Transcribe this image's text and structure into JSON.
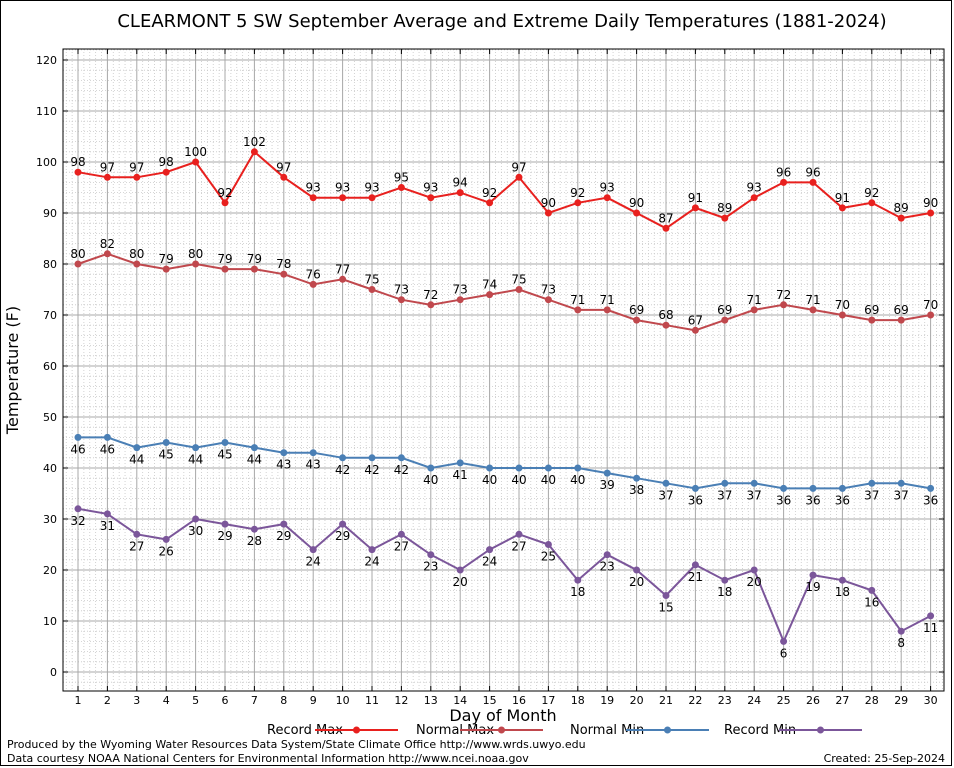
{
  "chart_data": {
    "type": "line",
    "title": "CLEARMONT 5 SW September Average and Extreme Daily Temperatures (1881-2024)",
    "xlabel": "Day of Month",
    "ylabel": "Temperature (F)",
    "xlim": [
      0.5,
      30.5
    ],
    "ylim": [
      -4,
      122
    ],
    "yticks": [
      0,
      10,
      20,
      30,
      40,
      50,
      60,
      70,
      80,
      90,
      100,
      110,
      120
    ],
    "x": [
      1,
      2,
      3,
      4,
      5,
      6,
      7,
      8,
      9,
      10,
      11,
      12,
      13,
      14,
      15,
      16,
      17,
      18,
      19,
      20,
      21,
      22,
      23,
      24,
      25,
      26,
      27,
      28,
      29,
      30
    ],
    "grid": true,
    "legend_position": "bottom",
    "series": [
      {
        "name": "Record Max",
        "color": "#e8201e",
        "label_pos": "above",
        "values": [
          98,
          97,
          97,
          98,
          100,
          92,
          102,
          97,
          93,
          93,
          93,
          95,
          93,
          94,
          92,
          97,
          90,
          92,
          93,
          90,
          87,
          91,
          89,
          93,
          96,
          96,
          91,
          92,
          89,
          90
        ]
      },
      {
        "name": "Normal Max",
        "color": "#c0484d",
        "label_pos": "above",
        "values": [
          80,
          82,
          80,
          79,
          80,
          79,
          79,
          78,
          76,
          77,
          75,
          73,
          72,
          73,
          74,
          75,
          73,
          71,
          71,
          69,
          68,
          67,
          69,
          71,
          72,
          71,
          70,
          69,
          69,
          70
        ]
      },
      {
        "name": "Normal Min",
        "color": "#4a7fb5",
        "label_pos": "below",
        "values": [
          46,
          46,
          44,
          45,
          44,
          45,
          44,
          43,
          43,
          42,
          42,
          42,
          40,
          41,
          40,
          40,
          40,
          40,
          39,
          38,
          37,
          36,
          37,
          37,
          36,
          36,
          36,
          37,
          37,
          36
        ]
      },
      {
        "name": "Record Min",
        "color": "#7b569a",
        "label_pos": "below",
        "values": [
          32,
          31,
          27,
          26,
          30,
          29,
          28,
          29,
          24,
          29,
          24,
          27,
          23,
          20,
          24,
          27,
          25,
          18,
          23,
          20,
          15,
          21,
          18,
          20,
          6,
          19,
          18,
          16,
          8,
          11
        ]
      }
    ]
  },
  "footer": {
    "credit_line1": "Produced by the Wyoming Water Resources Data System/State Climate Office http://www.wrds.uwyo.edu",
    "credit_line2": "Data courtesy NOAA National Centers for Environmental Information http://www.ncei.noaa.gov",
    "created": "Created:  25-Sep-2024"
  }
}
